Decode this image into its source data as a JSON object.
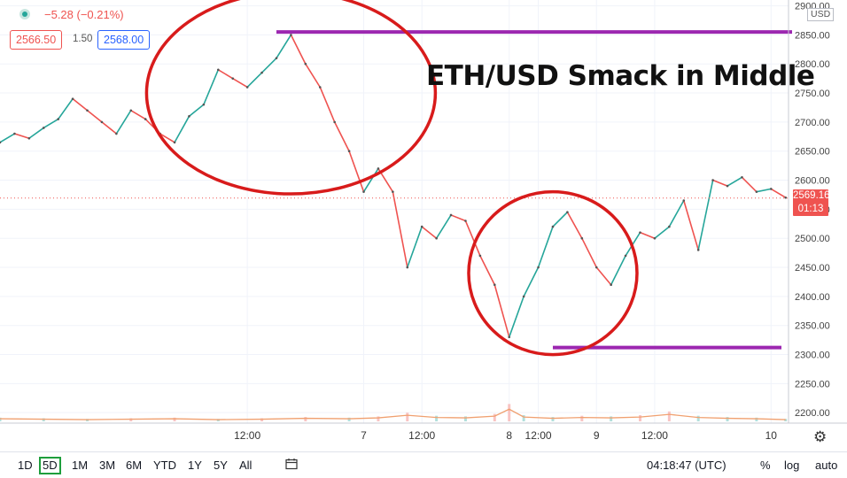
{
  "header": {
    "change": "−5.28 (−0.21%)",
    "bid": "2566.50",
    "spread": "1.50",
    "ask": "2568.00"
  },
  "annotation": "ETH/USD Smack in Middle",
  "price_axis": {
    "currency": "USD",
    "last_price": "2569.16",
    "countdown": "01:13"
  },
  "colors": {
    "up": "#26a69a",
    "down": "#ef5350",
    "ellipse": "#d81b1b",
    "level_line": "#9c27b0",
    "volume_ma": "#f0a070",
    "grid": "#f0f3fa"
  },
  "toolbar": {
    "timeframes": [
      "1D",
      "5D",
      "1M",
      "3M",
      "6M",
      "YTD",
      "1Y",
      "5Y",
      "All"
    ],
    "active_timeframe": "5D",
    "clock": "04:18:47 (UTC)",
    "percent": "%",
    "log": "log",
    "auto": "auto"
  },
  "icons": [
    "live-dot-icon",
    "calendar-icon",
    "gear-icon"
  ],
  "chart_data": {
    "type": "line",
    "title": "ETH/USD Smack in Middle",
    "ylim": [
      2182,
      2910
    ],
    "y_ticks": [
      2200,
      2250,
      2300,
      2350,
      2400,
      2450,
      2500,
      2550,
      2600,
      2650,
      2700,
      2750,
      2800,
      2850,
      2900
    ],
    "x_tick_labels": [
      "12:00",
      "7",
      "12:00",
      "8",
      "12:00",
      "9",
      "12:00",
      "10"
    ],
    "x_tick_positions": [
      2,
      6,
      8,
      11,
      12,
      14,
      16,
      20
    ],
    "x_range": [
      -6.5,
      20.6
    ],
    "grid": true,
    "last_price": 2569.16,
    "resistance_level": 2855,
    "support_level": 2312,
    "series": [
      {
        "x": [
          -6.5,
          -6,
          -5.5,
          -5,
          -4.5,
          -4,
          -3.5,
          -3,
          -2.5,
          -2,
          -1.5,
          -1,
          -0.5,
          0,
          0.5,
          1,
          1.5,
          2,
          2.5,
          3,
          3.5,
          4,
          4.5,
          5,
          5.5,
          6,
          6.5,
          7,
          7.5,
          8,
          8.5,
          9,
          9.5,
          10,
          10.5,
          11,
          11.5,
          12,
          12.5,
          13,
          13.5,
          14,
          14.5,
          15,
          15.5,
          16,
          16.5,
          17,
          17.5,
          18,
          18.5,
          19,
          19.5,
          20,
          20.5
        ],
        "values": [
          2665,
          2680,
          2672,
          2690,
          2705,
          2740,
          2720,
          2700,
          2680,
          2720,
          2705,
          2680,
          2665,
          2710,
          2730,
          2790,
          2775,
          2760,
          2785,
          2810,
          2850,
          2800,
          2760,
          2700,
          2650,
          2580,
          2620,
          2580,
          2450,
          2520,
          2500,
          2540,
          2530,
          2470,
          2420,
          2330,
          2400,
          2450,
          2520,
          2545,
          2500,
          2450,
          2420,
          2470,
          2510,
          2500,
          2520,
          2565,
          2480,
          2600,
          2590,
          2605,
          2580,
          2585,
          2570
        ]
      }
    ],
    "volume_range": [
      0,
      100
    ],
    "volume_x": [
      -6.5,
      -5,
      -3.5,
      -2,
      -0.5,
      1,
      2.5,
      4,
      5.5,
      6.5,
      7.5,
      8.5,
      9.5,
      10.5,
      11,
      11.5,
      12.5,
      13.5,
      14.5,
      15.5,
      16.5,
      17.5,
      18.5,
      19.5,
      20.5
    ],
    "volume_values": [
      6,
      5,
      4,
      5,
      6,
      4,
      5,
      7,
      6,
      8,
      14,
      9,
      8,
      12,
      28,
      10,
      7,
      9,
      8,
      10,
      16,
      9,
      7,
      6,
      4
    ]
  }
}
